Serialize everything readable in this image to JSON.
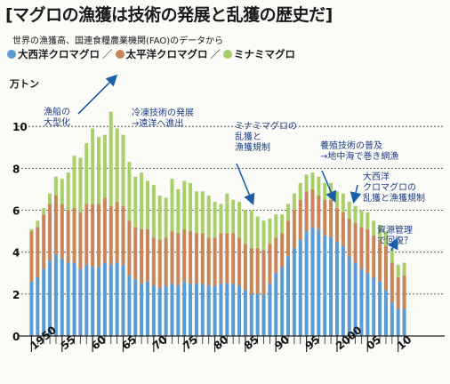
{
  "title": "[マグロの漁獲は技術の発展と乱獲の歴史だ]",
  "subtitle": "世界の漁獲高、国連食糧農業機関(FAO)のデータから",
  "legend_sep": "／",
  "chart_data": {
    "type": "bar",
    "stacked": true,
    "unit_label": "万トン",
    "ylim": [
      0,
      12
    ],
    "y_ticks": [
      0,
      2,
      4,
      6,
      8,
      10
    ],
    "grid": true,
    "categories": [
      1950,
      1951,
      1952,
      1953,
      1954,
      1955,
      1956,
      1957,
      1958,
      1959,
      1960,
      1961,
      1962,
      1963,
      1964,
      1965,
      1966,
      1967,
      1968,
      1969,
      1970,
      1971,
      1972,
      1973,
      1974,
      1975,
      1976,
      1977,
      1978,
      1979,
      1980,
      1981,
      1982,
      1983,
      1984,
      1985,
      1986,
      1987,
      1988,
      1989,
      1990,
      1991,
      1992,
      1993,
      1994,
      1995,
      1996,
      1997,
      1998,
      1999,
      2000,
      2001,
      2002,
      2003,
      2004,
      2005,
      2006,
      2007,
      2008,
      2009,
      2010,
      2011
    ],
    "x_tick_labels": [
      "1950",
      "55",
      "60",
      "65",
      "70",
      "75",
      "80",
      "85",
      "90",
      "95",
      "2000",
      "05",
      "10"
    ],
    "series": [
      {
        "name": "大西洋クロマグロ",
        "color": "#5b9bd5",
        "values": [
          2.6,
          2.8,
          3.2,
          3.6,
          3.9,
          3.7,
          3.5,
          3.5,
          3.2,
          3.4,
          3.3,
          3.3,
          3.5,
          3.4,
          3.5,
          3.4,
          2.9,
          2.7,
          2.5,
          2.6,
          2.4,
          2.3,
          2.4,
          2.5,
          2.4,
          2.6,
          2.5,
          2.5,
          2.5,
          2.4,
          2.4,
          2.5,
          2.5,
          2.5,
          2.4,
          2.2,
          2.0,
          2.0,
          2.0,
          2.5,
          3.0,
          3.3,
          3.8,
          4.2,
          4.6,
          5.0,
          5.2,
          5.1,
          4.8,
          4.7,
          4.5,
          4.3,
          3.8,
          3.5,
          3.2,
          3.0,
          2.8,
          2.6,
          2.2,
          1.6,
          1.3,
          1.3
        ]
      },
      {
        "name": "太平洋クロマグロ",
        "color": "#c9855a",
        "values": [
          2.4,
          2.4,
          2.6,
          2.7,
          2.8,
          2.6,
          2.5,
          2.6,
          2.7,
          2.9,
          3.0,
          3.0,
          3.1,
          2.8,
          2.9,
          2.8,
          2.6,
          2.5,
          2.6,
          2.5,
          2.3,
          2.3,
          2.3,
          2.5,
          2.5,
          2.5,
          2.5,
          2.4,
          2.4,
          2.3,
          2.3,
          2.4,
          2.4,
          2.4,
          2.3,
          2.2,
          2.2,
          2.2,
          2.1,
          1.9,
          1.7,
          1.6,
          1.7,
          1.8,
          1.9,
          1.9,
          1.8,
          1.6,
          1.7,
          1.8,
          1.6,
          1.6,
          1.8,
          1.9,
          2.0,
          2.1,
          2.0,
          2.0,
          2.1,
          1.9,
          1.5,
          1.6
        ]
      },
      {
        "name": "ミナミマグロ",
        "color": "#a9cf6a",
        "values": [
          0.1,
          0.3,
          0.3,
          0.5,
          0.9,
          1.2,
          1.8,
          2.5,
          2.6,
          2.9,
          3.6,
          3.2,
          3.0,
          4.5,
          3.5,
          3.4,
          2.8,
          2.4,
          2.7,
          2.3,
          2.5,
          2.1,
          1.9,
          2.5,
          2.1,
          2.3,
          2.3,
          2.0,
          2.0,
          2.0,
          1.7,
          1.4,
          1.9,
          1.6,
          1.7,
          1.6,
          1.8,
          1.5,
          1.4,
          1.2,
          1.1,
          0.9,
          0.8,
          0.8,
          0.8,
          0.8,
          0.8,
          0.9,
          0.8,
          0.8,
          0.8,
          0.9,
          0.8,
          0.8,
          0.8,
          0.8,
          0.7,
          0.7,
          0.7,
          0.7,
          0.6,
          0.6
        ]
      }
    ],
    "annotations": [
      {
        "lines": [
          "漁船の",
          "大型化"
        ]
      },
      {
        "lines": [
          "冷凍技術の発展",
          "→遠洋へ進出"
        ]
      },
      {
        "lines": [
          "ミナミマグロの",
          "乱獲と",
          "漁獲規制"
        ]
      },
      {
        "lines": [
          "養殖技術の普及",
          "→地中海で巻き網漁"
        ]
      },
      {
        "lines": [
          "大西洋",
          "クロマグロの",
          "乱獲と漁獲規制"
        ]
      },
      {
        "lines": [
          "資源管理",
          "で回復？"
        ]
      }
    ]
  }
}
